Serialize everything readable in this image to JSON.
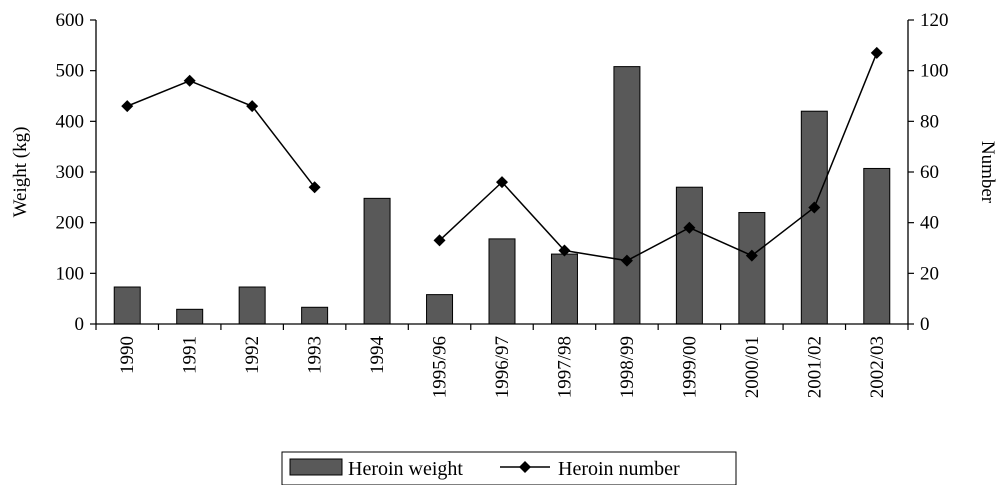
{
  "chart_data": {
    "type": "bar",
    "categories": [
      "1990",
      "1991",
      "1992",
      "1993",
      "1994",
      "1995/96",
      "1996/97",
      "1997/98",
      "1998/99",
      "1999/00",
      "2000/01",
      "2001/02",
      "2002/03"
    ],
    "series": [
      {
        "name": "Heroin weight",
        "type": "bar",
        "axis": "left",
        "values": [
          73,
          29,
          73,
          33,
          248,
          58,
          168,
          138,
          508,
          270,
          220,
          420,
          307
        ]
      },
      {
        "name": "Heroin number",
        "type": "line",
        "axis": "right",
        "values": [
          86,
          96,
          86,
          54,
          null,
          33,
          56,
          29,
          25,
          38,
          27,
          46,
          107
        ]
      }
    ],
    "ylabel": "Weight (kg)",
    "y2label": "Number",
    "ylim": [
      0,
      600
    ],
    "y2lim": [
      0,
      120
    ],
    "yticks": [
      "0",
      "100",
      "200",
      "300",
      "400",
      "500",
      "600"
    ],
    "y2ticks": [
      "0",
      "20",
      "40",
      "60",
      "80",
      "100",
      "120"
    ],
    "grid": false,
    "legend_position": "bottom",
    "colors": {
      "bar": "#595959",
      "bar_stroke": "#000000",
      "line": "#000000",
      "marker": "#000000"
    }
  }
}
